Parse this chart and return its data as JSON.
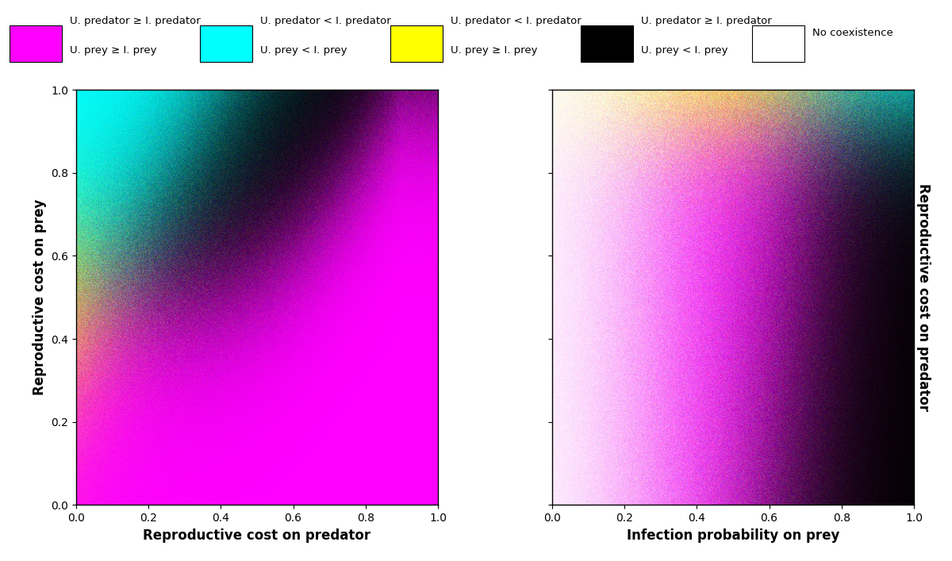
{
  "fig_width": 12.0,
  "fig_height": 7.07,
  "dpi": 100,
  "legend_items": [
    {
      "color": "#FF00FF",
      "line1": "U. predator ≥ I. predator",
      "line2": "U. prey ≥ I. prey"
    },
    {
      "color": "#00FFFF",
      "line1": "U. predator < I. predator",
      "line2": "U. prey < I. prey"
    },
    {
      "color": "#FFFF00",
      "line1": "U. predator < I. predator",
      "line2": "U. prey ≥ I. prey"
    },
    {
      "color": "#000000",
      "line1": "U. predator ≥ I. predator",
      "line2": "U. prey < I. prey"
    },
    {
      "color": "#FFFFFF",
      "line1": "No coexistence",
      "line2": ""
    }
  ],
  "plot1": {
    "xlabel": "Reproductive cost on predator",
    "ylabel": "Reproductive cost on prey"
  },
  "plot2": {
    "xlabel": "Infection probability on prey",
    "ylabel": "Reproductive cost on predator"
  }
}
